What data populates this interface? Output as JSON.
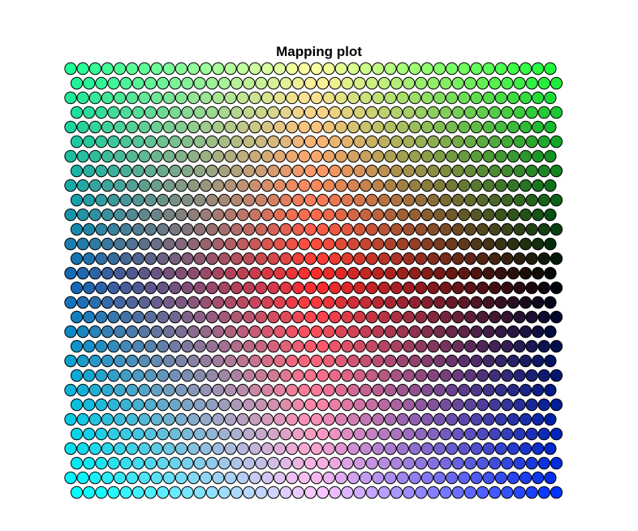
{
  "chart_data": {
    "type": "heatmap",
    "subtype": "som-hexagonal-mapping",
    "title": "Mapping plot",
    "xlabel": "",
    "ylabel": "",
    "grid": false,
    "legend": "none",
    "grid_columns": 40,
    "grid_rows": 30,
    "layout": "hexagonal",
    "cell_shape": "circle",
    "cell_outline_color": "#000000",
    "corner_colors": {
      "top_left": "#1eff96",
      "top_center": "#ffffa0",
      "top_right": "#1eff3c",
      "middle_left": "#1464b4",
      "center": "#ff2828",
      "middle_right": "#000000",
      "bottom_left": "#00ffff",
      "bottom_center": "#ffc8ff",
      "bottom_right": "#0032ff"
    }
  }
}
